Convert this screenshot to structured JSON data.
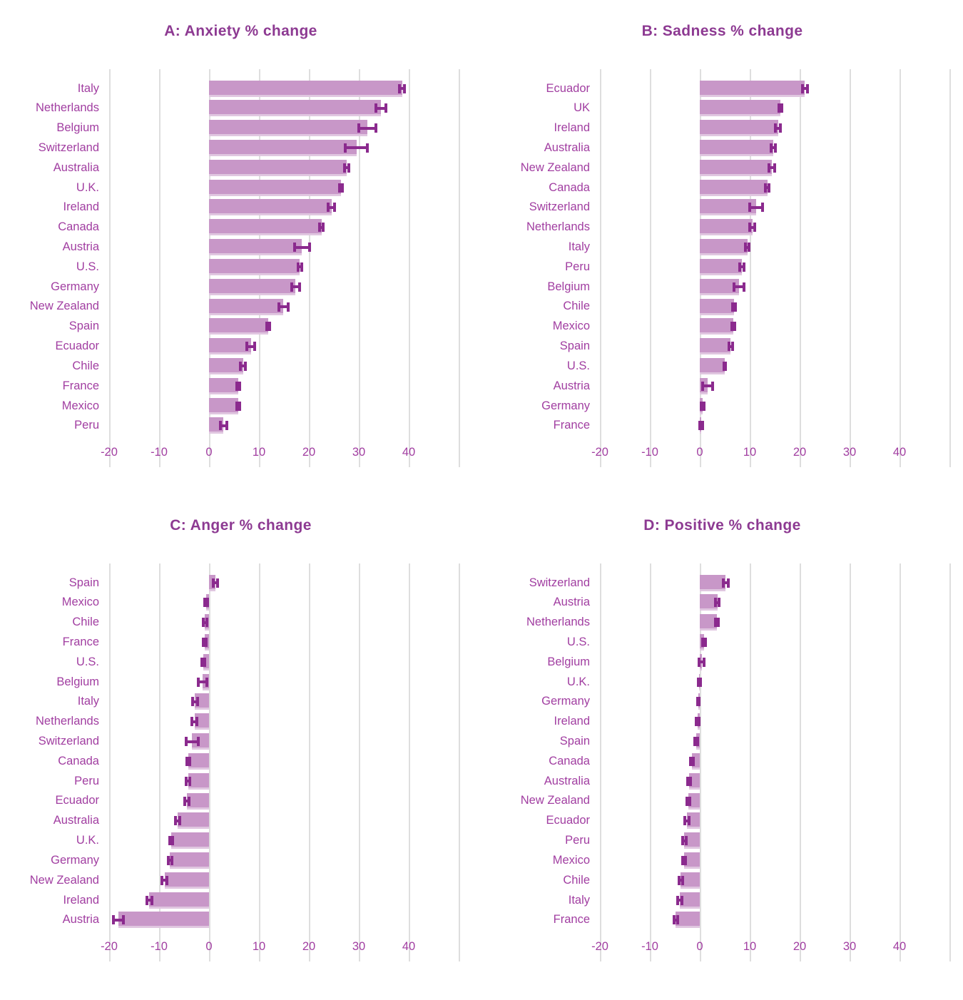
{
  "figure": {
    "background": "#ffffff",
    "colors": {
      "bar_fill": "#c897c8",
      "bar_edge": "#e0c6e0",
      "error_bar": "#8b2a8e",
      "category_label": "#a13ea1",
      "tick_label": "#a13ea1",
      "panel_title": "#8d3a92",
      "gridline": "#dedede"
    }
  },
  "chart_data": [
    {
      "id": "a",
      "type": "bar",
      "orientation": "horizontal",
      "title": "A: Anxiety % change",
      "xlabel": "",
      "ylabel": "",
      "xlim": [
        -20,
        50
      ],
      "xticks": [
        -20,
        -10,
        0,
        10,
        20,
        30,
        40
      ],
      "gridlines": [
        -20,
        -10,
        0,
        10,
        20,
        30,
        40,
        50
      ],
      "grid": true,
      "error_bars": true,
      "categories": [
        "Italy",
        "Netherlands",
        "Belgium",
        "Switzerland",
        "Australia",
        "U.K.",
        "Ireland",
        "Canada",
        "Austria",
        "U.S.",
        "Germany",
        "New Zealand",
        "Spain",
        "Ecuador",
        "Chile",
        "France",
        "Mexico",
        "Peru"
      ],
      "values": [
        38.7,
        34.4,
        31.7,
        29.5,
        27.6,
        26.4,
        24.5,
        22.5,
        18.6,
        18.2,
        17.3,
        14.9,
        11.8,
        8.4,
        6.8,
        5.9,
        5.9,
        2.9
      ],
      "errors": [
        0.5,
        1.0,
        1.7,
        2.2,
        0.4,
        0.3,
        0.7,
        0.3,
        1.5,
        0.3,
        0.8,
        0.9,
        0.3,
        0.8,
        0.5,
        0.3,
        0.3,
        0.6
      ]
    },
    {
      "id": "b",
      "type": "bar",
      "orientation": "horizontal",
      "title": "B: Sadness % change",
      "xlabel": "",
      "ylabel": "",
      "xlim": [
        -20,
        50
      ],
      "xticks": [
        -20,
        -10,
        0,
        10,
        20,
        30,
        40
      ],
      "gridlines": [
        -20,
        -10,
        0,
        10,
        20,
        30,
        40,
        50
      ],
      "grid": true,
      "error_bars": true,
      "categories": [
        "Ecuador",
        "UK",
        "Ireland",
        "Australia",
        "New Zealand",
        "Canada",
        "Switzerland",
        "Netherlands",
        "Italy",
        "Peru",
        "Belgium",
        "Chile",
        "Mexico",
        "Spain",
        "U.S.",
        "Austria",
        "Germany",
        "France"
      ],
      "values": [
        21.0,
        16.1,
        15.7,
        14.7,
        14.4,
        13.5,
        11.3,
        10.5,
        9.5,
        8.4,
        7.8,
        6.8,
        6.7,
        6.2,
        5.0,
        1.6,
        0.6,
        0.3
      ],
      "errors": [
        0.5,
        0.3,
        0.5,
        0.4,
        0.6,
        0.3,
        1.3,
        0.5,
        0.3,
        0.4,
        1.0,
        0.3,
        0.3,
        0.3,
        0.2,
        1.0,
        0.3,
        0.3
      ]
    },
    {
      "id": "c",
      "type": "bar",
      "orientation": "horizontal",
      "title": "C: Anger % change",
      "xlabel": "",
      "ylabel": "",
      "xlim": [
        -20,
        50
      ],
      "xticks": [
        -20,
        -10,
        0,
        10,
        20,
        30,
        40
      ],
      "gridlines": [
        -20,
        -10,
        0,
        10,
        20,
        30,
        40,
        50
      ],
      "grid": true,
      "error_bars": true,
      "categories": [
        "Spain",
        "Mexico",
        "Chile",
        "France",
        "U.S.",
        "Belgium",
        "Italy",
        "Netherlands",
        "Switzerland",
        "Canada",
        "Peru",
        "Ecuador",
        "Australia",
        "U.K.",
        "Germany",
        "New Zealand",
        "Ireland",
        "Austria"
      ],
      "values": [
        1.3,
        -0.6,
        -0.8,
        -0.9,
        -1.2,
        -1.3,
        -2.8,
        -2.9,
        -3.4,
        -4.1,
        -4.2,
        -4.4,
        -6.3,
        -7.6,
        -7.8,
        -8.9,
        -12.0,
        -18.2
      ],
      "errors": [
        0.4,
        0.3,
        0.3,
        0.3,
        0.3,
        0.9,
        0.5,
        0.5,
        1.2,
        0.3,
        0.4,
        0.4,
        0.4,
        0.3,
        0.4,
        0.5,
        0.5,
        1.0
      ]
    },
    {
      "id": "d",
      "type": "bar",
      "orientation": "horizontal",
      "title": "D: Positive % change",
      "xlabel": "",
      "ylabel": "",
      "xlim": [
        -20,
        50
      ],
      "xticks": [
        -20,
        -10,
        0,
        10,
        20,
        30,
        40
      ],
      "gridlines": [
        -20,
        -10,
        0,
        10,
        20,
        30,
        40,
        50
      ],
      "grid": true,
      "error_bars": true,
      "categories": [
        "Switzerland",
        "Austria",
        "Netherlands",
        "U.S.",
        "Belgium",
        "U.K.",
        "Germany",
        "Ireland",
        "Spain",
        "Canada",
        "Australia",
        "New Zealand",
        "Ecuador",
        "Peru",
        "Mexico",
        "Chile",
        "Italy",
        "France"
      ],
      "values": [
        5.2,
        3.5,
        3.4,
        0.9,
        0.4,
        -0.1,
        -0.3,
        -0.4,
        -0.7,
        -1.6,
        -2.2,
        -2.3,
        -2.6,
        -3.1,
        -3.1,
        -3.8,
        -4.0,
        -4.8
      ],
      "errors": [
        0.5,
        0.4,
        0.3,
        0.3,
        0.5,
        0.2,
        0.2,
        0.3,
        0.3,
        0.3,
        0.3,
        0.3,
        0.4,
        0.4,
        0.3,
        0.3,
        0.4,
        0.4
      ]
    }
  ]
}
